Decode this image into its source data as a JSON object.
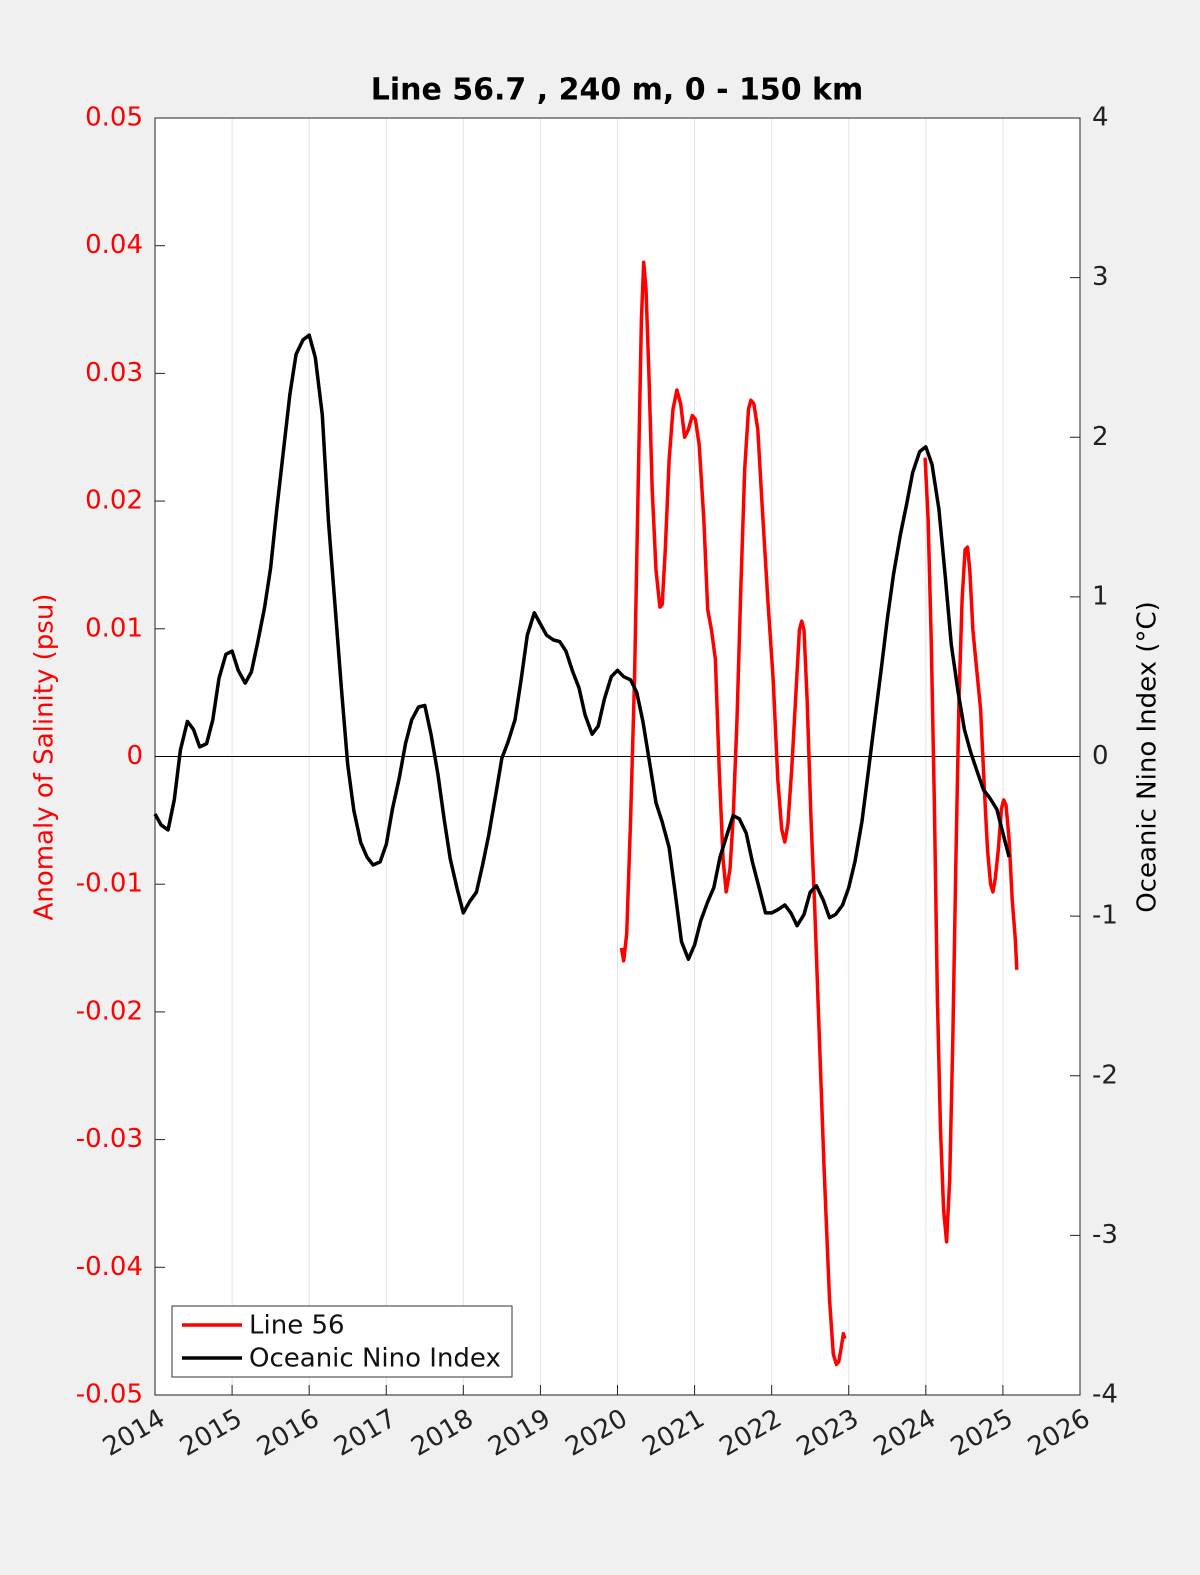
{
  "chart_data": {
    "type": "line",
    "title": "Line 56.7 , 240 m, 0 - 150 km",
    "ylabel": "Anomaly of Salinity (psu)",
    "y2label": "Oceanic Nino Index (°C)",
    "xlim": [
      2014,
      2026
    ],
    "xticks": [
      2014,
      2015,
      2016,
      2017,
      2018,
      2019,
      2020,
      2021,
      2022,
      2023,
      2024,
      2025,
      2026
    ],
    "ylim": [
      -0.05,
      0.05
    ],
    "yticks": [
      -0.05,
      -0.04,
      -0.03,
      -0.02,
      -0.01,
      0,
      0.01,
      0.02,
      0.03,
      0.04,
      0.05
    ],
    "y2lim": [
      -4,
      4
    ],
    "y2ticks": [
      -4,
      -3,
      -2,
      -1,
      0,
      1,
      2,
      3,
      4
    ],
    "grid": true,
    "zero_line": true,
    "legend": "lower left",
    "series": [
      {
        "name": "Line 56",
        "color": "#ff0000",
        "axis": "y",
        "x": [
          2020.05,
          2020.08,
          2020.12,
          2020.17,
          2020.22,
          2020.27,
          2020.31,
          2020.34,
          2020.37,
          2020.41,
          2020.45,
          2020.5,
          2020.55,
          2020.58,
          2020.62,
          2020.67,
          2020.72,
          2020.77,
          2020.82,
          2020.87,
          2020.92,
          2020.97,
          2021.01,
          2021.06,
          2021.12,
          2021.17,
          2021.22,
          2021.27,
          2021.32,
          2021.37,
          2021.41,
          2021.46,
          2021.5,
          2021.55,
          2021.6,
          2021.65,
          2021.7,
          2021.73,
          2021.77,
          2021.82,
          2021.88,
          2021.95,
          2022.02,
          2022.08,
          2022.13,
          2022.17,
          2022.21,
          2022.26,
          2022.31,
          2022.36,
          2022.39,
          2022.42,
          2022.46,
          2022.51,
          2022.56,
          2022.61,
          2022.68,
          2022.75,
          2022.8,
          2022.84,
          2022.87,
          2022.9,
          2022.93,
          2022.95,
          2023.5,
          2023.99,
          2024.03,
          2024.07,
          2024.11,
          2024.15,
          2024.19,
          2024.23,
          2024.27,
          2024.31,
          2024.35,
          2024.39,
          2024.43,
          2024.47,
          2024.51,
          2024.54,
          2024.57,
          2024.61,
          2024.66,
          2024.71,
          2024.76,
          2024.8,
          2024.84,
          2024.87,
          2024.9,
          2024.94,
          2024.98,
          2025.01,
          2025.04,
          2025.08,
          2025.12,
          2025.16,
          2025.18
        ],
        "values": [
          -0.015,
          -0.016,
          -0.0139,
          -0.0049,
          0.006,
          0.0217,
          0.0342,
          0.0387,
          0.0366,
          0.0295,
          0.0209,
          0.0146,
          0.0117,
          0.0119,
          0.0162,
          0.0232,
          0.0272,
          0.0287,
          0.0276,
          0.025,
          0.0256,
          0.0267,
          0.0264,
          0.0244,
          0.0186,
          0.0115,
          0.0099,
          0.0076,
          -0.001,
          -0.0081,
          -0.0106,
          -0.0088,
          -0.0049,
          0.0029,
          0.0131,
          0.0225,
          0.0272,
          0.0279,
          0.0276,
          0.0256,
          0.0193,
          0.0123,
          0.006,
          -0.0018,
          -0.0057,
          -0.0067,
          -0.0053,
          -0.001,
          0.0045,
          0.0099,
          0.0106,
          0.0099,
          0.0045,
          -0.0049,
          -0.012,
          -0.0206,
          -0.0323,
          -0.0425,
          -0.0468,
          -0.0476,
          -0.0474,
          -0.0464,
          -0.0452,
          -0.0456,
          null,
          0.0234,
          0.0186,
          0.0092,
          -0.0034,
          -0.019,
          -0.0292,
          -0.0355,
          -0.038,
          -0.0331,
          -0.0222,
          -0.0081,
          0.0045,
          0.0123,
          0.0162,
          0.0164,
          0.0146,
          0.0099,
          0.0068,
          0.0037,
          -0.0026,
          -0.0073,
          -0.01,
          -0.0106,
          -0.0096,
          -0.0073,
          -0.0041,
          -0.0034,
          -0.0038,
          -0.0065,
          -0.0112,
          -0.0143,
          -0.0167
        ]
      },
      {
        "name": "Oceanic Nino Index",
        "color": "#000000",
        "axis": "y2",
        "x": [
          2014,
          2014.08,
          2014.17,
          2014.25,
          2014.33,
          2014.42,
          2014.5,
          2014.58,
          2014.67,
          2014.75,
          2014.83,
          2014.92,
          2015,
          2015.08,
          2015.17,
          2015.25,
          2015.33,
          2015.42,
          2015.5,
          2015.58,
          2015.67,
          2015.75,
          2015.83,
          2015.92,
          2016,
          2016.08,
          2016.17,
          2016.25,
          2016.33,
          2016.42,
          2016.5,
          2016.58,
          2016.67,
          2016.75,
          2016.83,
          2016.92,
          2017,
          2017.08,
          2017.17,
          2017.25,
          2017.33,
          2017.42,
          2017.5,
          2017.58,
          2017.67,
          2017.75,
          2017.83,
          2017.92,
          2018,
          2018.08,
          2018.17,
          2018.25,
          2018.33,
          2018.42,
          2018.5,
          2018.58,
          2018.67,
          2018.75,
          2018.83,
          2018.92,
          2019,
          2019.08,
          2019.17,
          2019.25,
          2019.33,
          2019.42,
          2019.5,
          2019.58,
          2019.67,
          2019.75,
          2019.83,
          2019.92,
          2020,
          2020.08,
          2020.17,
          2020.25,
          2020.33,
          2020.42,
          2020.5,
          2020.58,
          2020.67,
          2020.75,
          2020.83,
          2020.92,
          2021,
          2021.08,
          2021.17,
          2021.25,
          2021.33,
          2021.42,
          2021.5,
          2021.58,
          2021.67,
          2021.75,
          2021.83,
          2021.92,
          2022,
          2022.08,
          2022.17,
          2022.25,
          2022.33,
          2022.42,
          2022.5,
          2022.58,
          2022.67,
          2022.75,
          2022.83,
          2022.92,
          2023,
          2023.08,
          2023.17,
          2023.25,
          2023.33,
          2023.42,
          2023.5,
          2023.58,
          2023.67,
          2023.75,
          2023.83,
          2023.92,
          2024,
          2024.08,
          2024.17,
          2024.25,
          2024.33,
          2024.42,
          2024.5,
          2024.58,
          2024.67,
          2024.75,
          2024.83,
          2024.92,
          2025,
          2025.08
        ],
        "values": [
          -0.36,
          -0.43,
          -0.46,
          -0.27,
          0.04,
          0.22,
          0.17,
          0.06,
          0.08,
          0.23,
          0.49,
          0.64,
          0.66,
          0.54,
          0.46,
          0.53,
          0.71,
          0.93,
          1.18,
          1.55,
          1.93,
          2.27,
          2.52,
          2.61,
          2.64,
          2.5,
          2.14,
          1.48,
          0.98,
          0.42,
          -0.05,
          -0.34,
          -0.54,
          -0.63,
          -0.68,
          -0.66,
          -0.55,
          -0.33,
          -0.13,
          0.08,
          0.23,
          0.31,
          0.32,
          0.14,
          -0.11,
          -0.39,
          -0.64,
          -0.83,
          -0.98,
          -0.91,
          -0.85,
          -0.68,
          -0.49,
          -0.24,
          -0.01,
          0.09,
          0.23,
          0.48,
          0.76,
          0.9,
          0.83,
          0.76,
          0.73,
          0.72,
          0.66,
          0.53,
          0.43,
          0.26,
          0.14,
          0.19,
          0.36,
          0.5,
          0.54,
          0.5,
          0.48,
          0.4,
          0.22,
          -0.05,
          -0.29,
          -0.41,
          -0.57,
          -0.86,
          -1.16,
          -1.27,
          -1.18,
          -1.03,
          -0.91,
          -0.82,
          -0.63,
          -0.49,
          -0.37,
          -0.39,
          -0.48,
          -0.66,
          -0.81,
          -0.98,
          -0.98,
          -0.96,
          -0.93,
          -0.98,
          -1.06,
          -0.99,
          -0.85,
          -0.81,
          -0.9,
          -1.01,
          -0.99,
          -0.93,
          -0.82,
          -0.66,
          -0.41,
          -0.11,
          0.2,
          0.54,
          0.86,
          1.14,
          1.39,
          1.58,
          1.78,
          1.91,
          1.94,
          1.83,
          1.55,
          1.14,
          0.7,
          0.4,
          0.17,
          0.03,
          -0.1,
          -0.21,
          -0.26,
          -0.33,
          -0.48,
          -0.63
        ]
      }
    ]
  }
}
